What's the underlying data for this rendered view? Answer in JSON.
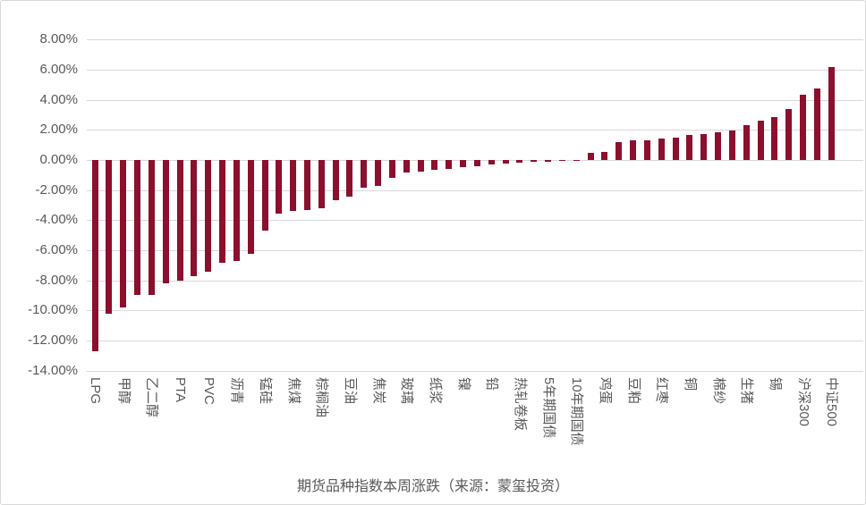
{
  "chart_data": {
    "type": "bar",
    "title": "期货品种指数本周涨跌（来源：蒙玺投资）",
    "xlabel": "",
    "ylabel": "",
    "ylim": [
      -14,
      8
    ],
    "grid": true,
    "legend": "none",
    "bar_color": "#8c0f2d",
    "gridline_color": "#d9d9d9",
    "axis_label_color": "#595959",
    "y_ticks": [
      "8.00%",
      "6.00%",
      "4.00%",
      "2.00%",
      "0.00%",
      "-2.00%",
      "-4.00%",
      "-6.00%",
      "-8.00%",
      "-10.00%",
      "-12.00%",
      "-14.00%"
    ],
    "categories": [
      "LPG",
      "",
      "甲醇",
      "",
      "乙二醇",
      "",
      "PTA",
      "",
      "PVC",
      "",
      "沥青",
      "",
      "锰硅",
      "",
      "焦煤",
      "",
      "棕榈油",
      "",
      "豆油",
      "",
      "焦炭",
      "",
      "玻璃",
      "",
      "纸浆",
      "",
      "镍",
      "",
      "铅",
      "",
      "热轧卷板",
      "",
      "5年期国债",
      "",
      "10年期国债",
      "",
      "鸡蛋",
      "",
      "豆粕",
      "",
      "红枣",
      "",
      "铜",
      "",
      "棉纱",
      "",
      "生猪",
      "",
      "锡",
      "",
      "沪深300",
      "",
      "中证500"
    ],
    "values": [
      -12.7,
      -10.2,
      -9.8,
      -9.0,
      -8.95,
      -8.2,
      -8.0,
      -7.7,
      -7.4,
      -6.85,
      -6.7,
      -6.25,
      -4.72,
      -3.56,
      -3.36,
      -3.32,
      -3.2,
      -2.65,
      -2.42,
      -1.86,
      -1.7,
      -1.17,
      -0.8,
      -0.78,
      -0.65,
      -0.58,
      -0.48,
      -0.4,
      -0.27,
      -0.26,
      -0.2,
      -0.12,
      -0.1,
      -0.06,
      -0.03,
      0.45,
      0.56,
      1.21,
      1.29,
      1.33,
      1.45,
      1.5,
      1.68,
      1.7,
      1.85,
      1.95,
      2.35,
      2.6,
      2.87,
      3.4,
      4.35,
      4.75,
      6.2
    ]
  }
}
